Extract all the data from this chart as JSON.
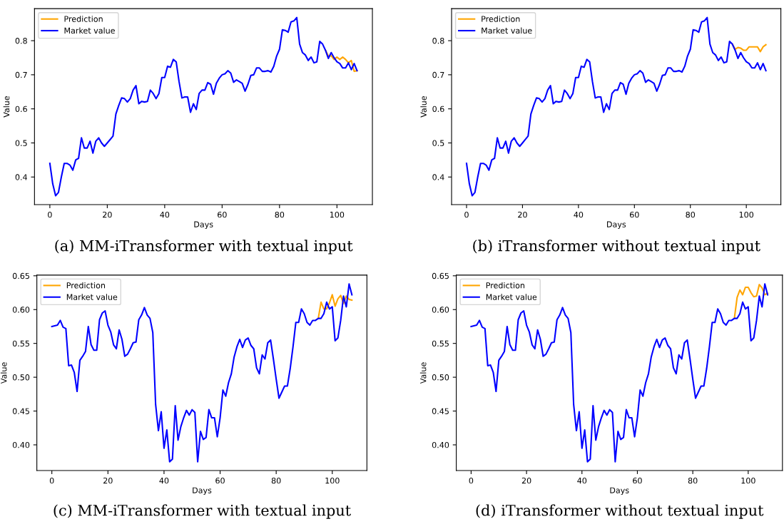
{
  "chart_data": [
    {
      "type": "line",
      "title": "(a) MM-iTransformer with textual input",
      "x": [
        0,
        1,
        2,
        3,
        4,
        5,
        6,
        7,
        8,
        9,
        10,
        11,
        12,
        13,
        14,
        15,
        16,
        17,
        18,
        19,
        20,
        21,
        22,
        23,
        24,
        25,
        26,
        27,
        28,
        29,
        30,
        31,
        32,
        33,
        34,
        35,
        36,
        37,
        38,
        39,
        40,
        41,
        42,
        43,
        44,
        45,
        46,
        47,
        48,
        49,
        50,
        51,
        52,
        53,
        54,
        55,
        56,
        57,
        58,
        59,
        60,
        61,
        62,
        63,
        64,
        65,
        66,
        67,
        68,
        69,
        70,
        71,
        72,
        73,
        74,
        75,
        76,
        77,
        78,
        79,
        80,
        81,
        82,
        83,
        84,
        85,
        86,
        87,
        88,
        89,
        90,
        91,
        92,
        93,
        94,
        95,
        96,
        97,
        98,
        99,
        100,
        101,
        102,
        103,
        104,
        105,
        106,
        107
      ],
      "xlabel": "Days",
      "ylabel": "Value",
      "xlim": [
        -5.35,
        112.35
      ],
      "ylim": [
        0.319,
        0.894
      ],
      "xticks": [
        0,
        20,
        40,
        60,
        80,
        100
      ],
      "yticks": [
        0.4,
        0.5,
        0.6,
        0.7,
        0.8
      ],
      "grid": false,
      "legend": "top left",
      "series": [
        {
          "name": "Prediction",
          "color": "#ffa500",
          "x": [
            96,
            97,
            98,
            99,
            100,
            101,
            102,
            103,
            104,
            105,
            106,
            107
          ],
          "values": [
            0.772,
            0.755,
            0.756,
            0.745,
            0.752,
            0.745,
            0.752,
            0.745,
            0.735,
            0.742,
            0.71,
            0.712
          ]
        },
        {
          "name": "Market value",
          "color": "#0000ff",
          "values": [
            0.44,
            0.38,
            0.345,
            0.355,
            0.4,
            0.44,
            0.44,
            0.435,
            0.42,
            0.45,
            0.455,
            0.515,
            0.485,
            0.485,
            0.505,
            0.47,
            0.505,
            0.515,
            0.5,
            0.49,
            0.5,
            0.51,
            0.52,
            0.585,
            0.61,
            0.632,
            0.63,
            0.62,
            0.63,
            0.655,
            0.668,
            0.615,
            0.622,
            0.62,
            0.622,
            0.655,
            0.645,
            0.63,
            0.645,
            0.692,
            0.692,
            0.725,
            0.722,
            0.745,
            0.738,
            0.68,
            0.632,
            0.635,
            0.635,
            0.59,
            0.615,
            0.598,
            0.645,
            0.655,
            0.655,
            0.677,
            0.672,
            0.643,
            0.675,
            0.69,
            0.7,
            0.703,
            0.712,
            0.705,
            0.678,
            0.685,
            0.68,
            0.675,
            0.652,
            0.672,
            0.698,
            0.7,
            0.72,
            0.72,
            0.71,
            0.71,
            0.712,
            0.708,
            0.725,
            0.755,
            0.775,
            0.832,
            0.83,
            0.825,
            0.855,
            0.858,
            0.868,
            0.79,
            0.765,
            0.758,
            0.742,
            0.752,
            0.735,
            0.738,
            0.798,
            0.79,
            0.772,
            0.748,
            0.765,
            0.75,
            0.738,
            0.733,
            0.72,
            0.72,
            0.735,
            0.715,
            0.733,
            0.712
          ]
        }
      ]
    },
    {
      "type": "line",
      "title": "(b) iTransformer without textual input",
      "x": [
        0,
        1,
        2,
        3,
        4,
        5,
        6,
        7,
        8,
        9,
        10,
        11,
        12,
        13,
        14,
        15,
        16,
        17,
        18,
        19,
        20,
        21,
        22,
        23,
        24,
        25,
        26,
        27,
        28,
        29,
        30,
        31,
        32,
        33,
        34,
        35,
        36,
        37,
        38,
        39,
        40,
        41,
        42,
        43,
        44,
        45,
        46,
        47,
        48,
        49,
        50,
        51,
        52,
        53,
        54,
        55,
        56,
        57,
        58,
        59,
        60,
        61,
        62,
        63,
        64,
        65,
        66,
        67,
        68,
        69,
        70,
        71,
        72,
        73,
        74,
        75,
        76,
        77,
        78,
        79,
        80,
        81,
        82,
        83,
        84,
        85,
        86,
        87,
        88,
        89,
        90,
        91,
        92,
        93,
        94,
        95,
        96,
        97,
        98,
        99,
        100,
        101,
        102,
        103,
        104,
        105,
        106,
        107
      ],
      "xlabel": "Days",
      "ylabel": "Value",
      "xlim": [
        -5.35,
        112.35
      ],
      "ylim": [
        0.319,
        0.894
      ],
      "xticks": [
        0,
        20,
        40,
        60,
        80,
        100
      ],
      "yticks": [
        0.4,
        0.5,
        0.6,
        0.7,
        0.8
      ],
      "grid": false,
      "legend": "top left",
      "series": [
        {
          "name": "Prediction",
          "color": "#ffa500",
          "x": [
            95,
            96,
            97,
            98,
            99,
            100,
            101,
            102,
            103,
            104,
            105,
            106,
            107
          ],
          "values": [
            0.79,
            0.775,
            0.78,
            0.778,
            0.772,
            0.772,
            0.782,
            0.782,
            0.782,
            0.782,
            0.768,
            0.782,
            0.788
          ]
        },
        {
          "name": "Market value",
          "color": "#0000ff",
          "values": [
            0.44,
            0.38,
            0.345,
            0.355,
            0.4,
            0.44,
            0.44,
            0.435,
            0.42,
            0.45,
            0.455,
            0.515,
            0.485,
            0.485,
            0.505,
            0.47,
            0.505,
            0.515,
            0.5,
            0.49,
            0.5,
            0.51,
            0.52,
            0.585,
            0.61,
            0.632,
            0.63,
            0.62,
            0.63,
            0.655,
            0.668,
            0.615,
            0.622,
            0.62,
            0.622,
            0.655,
            0.645,
            0.63,
            0.645,
            0.692,
            0.692,
            0.725,
            0.722,
            0.745,
            0.738,
            0.68,
            0.632,
            0.635,
            0.635,
            0.59,
            0.615,
            0.598,
            0.645,
            0.655,
            0.655,
            0.677,
            0.672,
            0.643,
            0.675,
            0.69,
            0.7,
            0.703,
            0.712,
            0.705,
            0.678,
            0.685,
            0.68,
            0.675,
            0.652,
            0.672,
            0.698,
            0.7,
            0.72,
            0.72,
            0.71,
            0.71,
            0.712,
            0.708,
            0.725,
            0.755,
            0.775,
            0.832,
            0.83,
            0.825,
            0.855,
            0.858,
            0.868,
            0.79,
            0.765,
            0.758,
            0.742,
            0.752,
            0.735,
            0.738,
            0.798,
            0.79,
            0.772,
            0.748,
            0.765,
            0.75,
            0.738,
            0.733,
            0.72,
            0.72,
            0.735,
            0.715,
            0.733,
            0.712
          ]
        }
      ]
    },
    {
      "type": "line",
      "title": "(c) MM-iTransformer with textual input",
      "x": [
        0,
        1,
        2,
        3,
        4,
        5,
        6,
        7,
        8,
        9,
        10,
        11,
        12,
        13,
        14,
        15,
        16,
        17,
        18,
        19,
        20,
        21,
        22,
        23,
        24,
        25,
        26,
        27,
        28,
        29,
        30,
        31,
        32,
        33,
        34,
        35,
        36,
        37,
        38,
        39,
        40,
        41,
        42,
        43,
        44,
        45,
        46,
        47,
        48,
        49,
        50,
        51,
        52,
        53,
        54,
        55,
        56,
        57,
        58,
        59,
        60,
        61,
        62,
        63,
        64,
        65,
        66,
        67,
        68,
        69,
        70,
        71,
        72,
        73,
        74,
        75,
        76,
        77,
        78,
        79,
        80,
        81,
        82,
        83,
        84,
        85,
        86,
        87,
        88,
        89,
        90,
        91,
        92,
        93,
        94,
        95,
        96,
        97,
        98,
        99,
        100,
        101,
        102,
        103,
        104,
        105,
        106,
        107
      ],
      "xlabel": "Days",
      "ylabel": "Value",
      "xlim": [
        -5.35,
        112.35
      ],
      "ylim": [
        0.362,
        0.651
      ],
      "xticks": [
        0,
        20,
        40,
        60,
        80,
        100
      ],
      "yticks": [
        {
          "value": 0.4,
          "label": "0.40"
        },
        {
          "value": 0.45,
          "label": "0.45"
        },
        {
          "value": 0.5,
          "label": "0.50"
        },
        {
          "value": 0.55,
          "label": "0.55"
        },
        {
          "value": 0.6,
          "label": "0.60"
        },
        {
          "value": 0.65,
          "label": "0.65"
        }
      ],
      "grid": false,
      "legend": "top left",
      "series": [
        {
          "name": "Prediction",
          "color": "#ffa500",
          "x": [
            95,
            96,
            97,
            98,
            99,
            100,
            101,
            102,
            103,
            104,
            105,
            106,
            107
          ],
          "values": [
            0.587,
            0.611,
            0.601,
            0.601,
            0.61,
            0.622,
            0.605,
            0.616,
            0.621,
            0.609,
            0.62,
            0.615,
            0.614
          ]
        },
        {
          "name": "Market value",
          "color": "#0000ff",
          "values": [
            0.575,
            0.576,
            0.577,
            0.584,
            0.574,
            0.572,
            0.517,
            0.518,
            0.507,
            0.479,
            0.525,
            0.531,
            0.538,
            0.575,
            0.548,
            0.54,
            0.54,
            0.585,
            0.595,
            0.598,
            0.577,
            0.567,
            0.548,
            0.542,
            0.57,
            0.556,
            0.531,
            0.534,
            0.542,
            0.551,
            0.552,
            0.585,
            0.592,
            0.603,
            0.592,
            0.587,
            0.566,
            0.46,
            0.421,
            0.449,
            0.395,
            0.422,
            0.375,
            0.379,
            0.458,
            0.407,
            0.427,
            0.44,
            0.451,
            0.444,
            0.452,
            0.448,
            0.375,
            0.42,
            0.408,
            0.411,
            0.452,
            0.44,
            0.44,
            0.412,
            0.44,
            0.481,
            0.472,
            0.492,
            0.505,
            0.53,
            0.545,
            0.556,
            0.544,
            0.555,
            0.558,
            0.547,
            0.542,
            0.514,
            0.505,
            0.533,
            0.527,
            0.551,
            0.555,
            0.527,
            0.497,
            0.469,
            0.478,
            0.487,
            0.487,
            0.513,
            0.545,
            0.581,
            0.581,
            0.601,
            0.594,
            0.581,
            0.577,
            0.584,
            0.584,
            0.587,
            0.587,
            0.594,
            0.611,
            0.601,
            0.604,
            0.554,
            0.558,
            0.584,
            0.62,
            0.604,
            0.638,
            0.622
          ]
        }
      ]
    },
    {
      "type": "line",
      "title": "(d) iTransformer without textual input",
      "x": [
        0,
        1,
        2,
        3,
        4,
        5,
        6,
        7,
        8,
        9,
        10,
        11,
        12,
        13,
        14,
        15,
        16,
        17,
        18,
        19,
        20,
        21,
        22,
        23,
        24,
        25,
        26,
        27,
        28,
        29,
        30,
        31,
        32,
        33,
        34,
        35,
        36,
        37,
        38,
        39,
        40,
        41,
        42,
        43,
        44,
        45,
        46,
        47,
        48,
        49,
        50,
        51,
        52,
        53,
        54,
        55,
        56,
        57,
        58,
        59,
        60,
        61,
        62,
        63,
        64,
        65,
        66,
        67,
        68,
        69,
        70,
        71,
        72,
        73,
        74,
        75,
        76,
        77,
        78,
        79,
        80,
        81,
        82,
        83,
        84,
        85,
        86,
        87,
        88,
        89,
        90,
        91,
        92,
        93,
        94,
        95,
        96,
        97,
        98,
        99,
        100,
        101,
        102,
        103,
        104,
        105,
        106,
        107
      ],
      "xlabel": "Days",
      "ylabel": "Value",
      "xlim": [
        -5.35,
        112.35
      ],
      "ylim": [
        0.362,
        0.651
      ],
      "xticks": [
        0,
        20,
        40,
        60,
        80,
        100
      ],
      "yticks": [
        {
          "value": 0.4,
          "label": "0.40"
        },
        {
          "value": 0.45,
          "label": "0.45"
        },
        {
          "value": 0.5,
          "label": "0.50"
        },
        {
          "value": 0.55,
          "label": "0.55"
        },
        {
          "value": 0.6,
          "label": "0.60"
        },
        {
          "value": 0.65,
          "label": "0.65"
        }
      ],
      "grid": false,
      "legend": "top left",
      "series": [
        {
          "name": "Prediction",
          "color": "#ffa500",
          "x": [
            95,
            96,
            97,
            98,
            99,
            100,
            101,
            102,
            103,
            104,
            105,
            106,
            107
          ],
          "values": [
            0.587,
            0.618,
            0.629,
            0.622,
            0.633,
            0.633,
            0.625,
            0.619,
            0.62,
            0.637,
            0.632,
            0.622,
            0.624
          ]
        },
        {
          "name": "Market value",
          "color": "#0000ff",
          "values": [
            0.575,
            0.576,
            0.577,
            0.584,
            0.574,
            0.572,
            0.517,
            0.518,
            0.507,
            0.479,
            0.525,
            0.531,
            0.538,
            0.575,
            0.548,
            0.54,
            0.54,
            0.585,
            0.595,
            0.598,
            0.577,
            0.567,
            0.548,
            0.542,
            0.57,
            0.556,
            0.531,
            0.534,
            0.542,
            0.551,
            0.552,
            0.585,
            0.592,
            0.603,
            0.592,
            0.587,
            0.566,
            0.46,
            0.421,
            0.449,
            0.395,
            0.422,
            0.375,
            0.379,
            0.458,
            0.407,
            0.427,
            0.44,
            0.451,
            0.444,
            0.452,
            0.448,
            0.375,
            0.42,
            0.408,
            0.411,
            0.452,
            0.44,
            0.44,
            0.412,
            0.44,
            0.481,
            0.472,
            0.492,
            0.505,
            0.53,
            0.545,
            0.556,
            0.544,
            0.555,
            0.558,
            0.547,
            0.542,
            0.514,
            0.505,
            0.533,
            0.527,
            0.551,
            0.555,
            0.527,
            0.497,
            0.469,
            0.478,
            0.487,
            0.487,
            0.513,
            0.545,
            0.581,
            0.581,
            0.601,
            0.594,
            0.581,
            0.577,
            0.584,
            0.584,
            0.587,
            0.587,
            0.594,
            0.611,
            0.601,
            0.604,
            0.554,
            0.558,
            0.584,
            0.62,
            0.604,
            0.638,
            0.622
          ]
        }
      ]
    }
  ]
}
